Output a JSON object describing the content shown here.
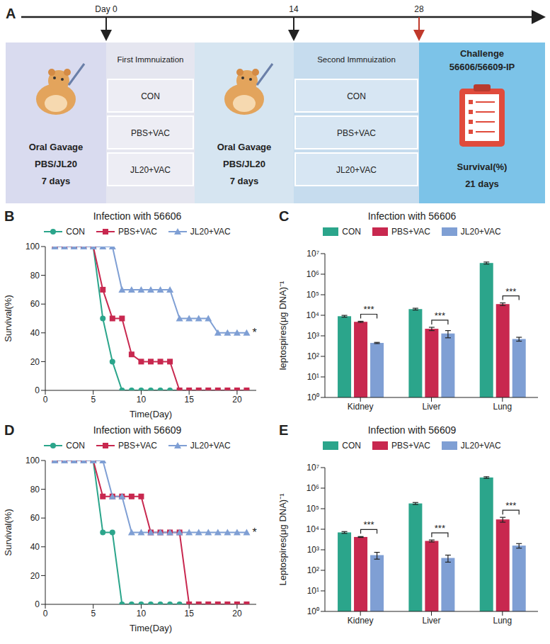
{
  "panel_a": {
    "label": "A",
    "timeline": [
      "Day 0",
      "14",
      "28"
    ],
    "stages": [
      {
        "type": "gavage",
        "lines": [
          "Oral Gavage",
          "PBS/JL20",
          "7 days"
        ]
      },
      {
        "type": "immunization",
        "title": "First Immnuization",
        "groups": [
          "CON",
          "PBS+VAC",
          "JL20+VAC"
        ]
      },
      {
        "type": "gavage",
        "lines": [
          "Oral Gavage",
          "PBS/JL20",
          "7 days"
        ]
      },
      {
        "type": "immunization",
        "title": "Second Immnuization",
        "groups": [
          "CON",
          "PBS+VAC",
          "JL20+VAC"
        ]
      },
      {
        "type": "challenge",
        "lines": [
          "Challenge",
          "56606/56609-IP"
        ],
        "footer": [
          "Survival(%)",
          "21 days"
        ]
      }
    ]
  },
  "chart_data": [
    {
      "panel_label": "B",
      "type": "line",
      "title": "Infection with 56606",
      "x": [
        1,
        2,
        3,
        4,
        5,
        6,
        7,
        8,
        9,
        10,
        11,
        12,
        13,
        14,
        15,
        16,
        17,
        18,
        19,
        20,
        21
      ],
      "xlim": [
        0,
        22
      ],
      "xticks": [
        0,
        5,
        10,
        15,
        20
      ],
      "ylim": [
        0,
        100
      ],
      "yticks": [
        0,
        20,
        40,
        60,
        80,
        100
      ],
      "x_label": "Time(Day)",
      "y_label": "Survival(%)",
      "legend": "top",
      "series": [
        {
          "name": "CON",
          "color": "#2ba58b",
          "marker": "circle",
          "values": [
            100,
            100,
            100,
            100,
            100,
            50,
            20,
            0,
            0,
            0,
            0,
            0,
            0,
            0,
            0,
            0,
            0,
            0,
            0,
            0,
            0
          ]
        },
        {
          "name": "PBS+VAC",
          "color": "#c8284f",
          "marker": "square",
          "values": [
            100,
            100,
            100,
            100,
            100,
            70,
            50,
            50,
            25,
            20,
            20,
            20,
            20,
            0,
            0,
            0,
            0,
            0,
            0,
            0,
            0
          ]
        },
        {
          "name": "JL20+VAC",
          "color": "#7f9fd4",
          "marker": "triangle",
          "values": [
            100,
            100,
            100,
            100,
            100,
            100,
            100,
            70,
            70,
            70,
            70,
            70,
            70,
            50,
            50,
            50,
            50,
            40,
            40,
            40,
            40
          ]
        }
      ],
      "annotations": [
        {
          "text": "*",
          "series": "JL20+VAC"
        }
      ]
    },
    {
      "panel_label": "C",
      "type": "bar",
      "title": "Infection with 56606",
      "categories": [
        "Kidney",
        "Liver",
        "Lung"
      ],
      "log": "y",
      "ylim": [
        1,
        10000000
      ],
      "yticks": [
        {
          "value": 1,
          "label": "10⁰"
        },
        {
          "value": 10,
          "label": "10¹"
        },
        {
          "value": 100,
          "label": "10²"
        },
        {
          "value": 1000,
          "label": "10³"
        },
        {
          "value": 10000,
          "label": "10⁴"
        },
        {
          "value": 100000,
          "label": "10⁵"
        },
        {
          "value": 1000000,
          "label": "10⁶"
        },
        {
          "value": 10000000,
          "label": "10⁷"
        }
      ],
      "y_label": "leptospires(μg DNA)⁻¹",
      "legend": "top",
      "series": [
        {
          "name": "CON",
          "color": "#2ba58b",
          "values": [
            9000,
            20000,
            3500000
          ],
          "errors": [
            900,
            2000,
            400000
          ]
        },
        {
          "name": "PBS+VAC",
          "color": "#c8284f",
          "values": [
            4800,
            2200,
            35000
          ],
          "errors": [
            300,
            400,
            5000
          ]
        },
        {
          "name": "JL20+VAC",
          "color": "#7f9fd4",
          "values": [
            450,
            1300,
            700
          ],
          "errors": [
            30,
            500,
            150
          ]
        }
      ],
      "annotations": [
        {
          "text": "***",
          "category": "Kidney",
          "from": "PBS+VAC",
          "to": "JL20+VAC"
        },
        {
          "text": "***",
          "category": "Liver",
          "from": "PBS+VAC",
          "to": "JL20+VAC"
        },
        {
          "text": "***",
          "category": "Lung",
          "from": "PBS+VAC",
          "to": "JL20+VAC"
        }
      ]
    },
    {
      "panel_label": "D",
      "type": "line",
      "title": "Infection with 56609",
      "x": [
        1,
        2,
        3,
        4,
        5,
        6,
        7,
        8,
        9,
        10,
        11,
        12,
        13,
        14,
        15,
        16,
        17,
        18,
        19,
        20,
        21
      ],
      "xlim": [
        0,
        22
      ],
      "xticks": [
        0,
        5,
        10,
        15,
        20
      ],
      "ylim": [
        0,
        100
      ],
      "yticks": [
        0,
        20,
        40,
        60,
        80,
        100
      ],
      "x_label": "Time(Day)",
      "y_label": "Survival(%)",
      "legend": "top",
      "series": [
        {
          "name": "CON",
          "color": "#2ba58b",
          "marker": "circle",
          "values": [
            100,
            100,
            100,
            100,
            100,
            50,
            50,
            0,
            0,
            0,
            0,
            0,
            0,
            0,
            0,
            0,
            0,
            0,
            0,
            0,
            0
          ]
        },
        {
          "name": "PBS+VAC",
          "color": "#c8284f",
          "marker": "square",
          "values": [
            100,
            100,
            100,
            100,
            100,
            75,
            75,
            75,
            75,
            75,
            50,
            50,
            50,
            50,
            0,
            0,
            0,
            0,
            0,
            0,
            0
          ]
        },
        {
          "name": "JL20+VAC",
          "color": "#7f9fd4",
          "marker": "triangle",
          "values": [
            100,
            100,
            100,
            100,
            100,
            100,
            75,
            75,
            50,
            50,
            50,
            50,
            50,
            50,
            50,
            50,
            50,
            50,
            50,
            50,
            50
          ]
        }
      ],
      "annotations": [
        {
          "text": "*",
          "series": "JL20+VAC"
        }
      ]
    },
    {
      "panel_label": "E",
      "type": "bar",
      "title": "Infection with 56609",
      "categories": [
        "Kidney",
        "Liver",
        "Lung"
      ],
      "log": "y",
      "ylim": [
        1,
        10000000
      ],
      "yticks": [
        {
          "value": 1,
          "label": "10⁰"
        },
        {
          "value": 10,
          "label": "10¹"
        },
        {
          "value": 100,
          "label": "10²"
        },
        {
          "value": 1000,
          "label": "10³"
        },
        {
          "value": 10000,
          "label": "10⁴"
        },
        {
          "value": 100000,
          "label": "10⁵"
        },
        {
          "value": 1000000,
          "label": "10⁶"
        },
        {
          "value": 10000000,
          "label": "10⁷"
        }
      ],
      "y_label": "Leptospires(μg DNA)⁻¹",
      "legend": "top",
      "series": [
        {
          "name": "CON",
          "color": "#2ba58b",
          "values": [
            7000,
            180000,
            3300000
          ],
          "errors": [
            700,
            20000,
            300000
          ]
        },
        {
          "name": "PBS+VAC",
          "color": "#c8284f",
          "values": [
            4200,
            2700,
            30000
          ],
          "errors": [
            200,
            300,
            8000
          ]
        },
        {
          "name": "JL20+VAC",
          "color": "#7f9fd4",
          "values": [
            550,
            400,
            1600
          ],
          "errors": [
            200,
            150,
            400
          ]
        }
      ],
      "annotations": [
        {
          "text": "***",
          "category": "Kidney",
          "from": "PBS+VAC",
          "to": "JL20+VAC"
        },
        {
          "text": "***",
          "category": "Liver",
          "from": "PBS+VAC",
          "to": "JL20+VAC"
        },
        {
          "text": "***",
          "category": "Lung",
          "from": "PBS+VAC",
          "to": "JL20+VAC"
        }
      ]
    }
  ]
}
